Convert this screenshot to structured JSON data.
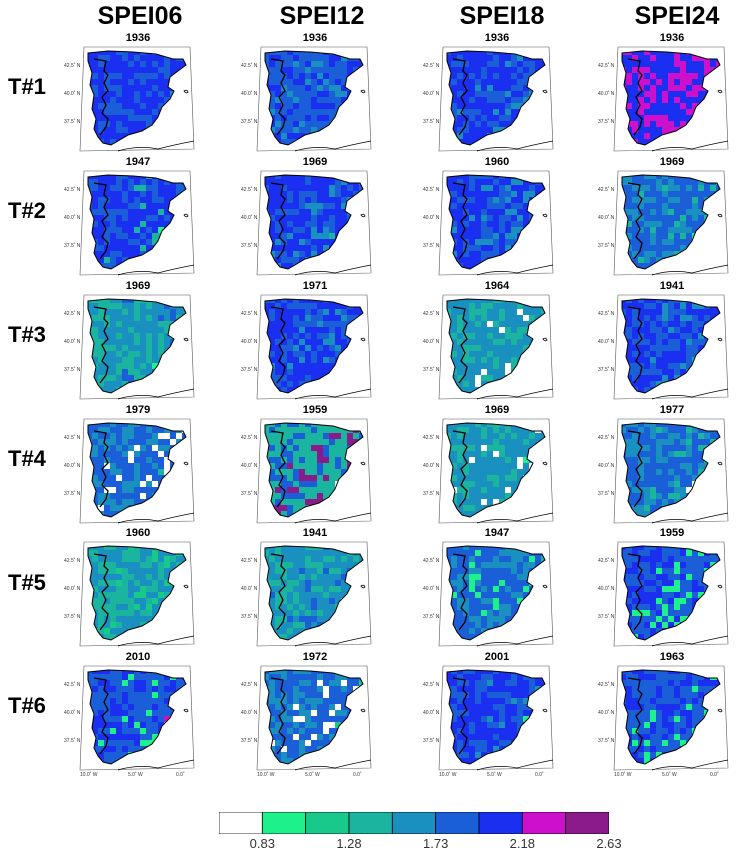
{
  "chart_data": {
    "type": "heatmap",
    "columns": [
      "SPEI06",
      "SPEI12",
      "SPEI18",
      "SPEI24"
    ],
    "rows": [
      "T#1",
      "T#2",
      "T#3",
      "T#4",
      "T#5",
      "T#6"
    ],
    "years": [
      [
        "1936",
        "1936",
        "1936",
        "1936"
      ],
      [
        "1947",
        "1969",
        "1960",
        "1969"
      ],
      [
        "1969",
        "1971",
        "1964",
        "1941"
      ],
      [
        "1979",
        "1959",
        "1969",
        "1977"
      ],
      [
        "1960",
        "1941",
        "1947",
        "1959"
      ],
      [
        "2010",
        "1972",
        "2001",
        "1963"
      ]
    ],
    "lat_ticks": [
      "42.5˚ N",
      "40.0˚ N",
      "37.5˚ N"
    ],
    "lon_ticks": [
      "10.0˚ W",
      "5.0˚ W",
      "0.0˚"
    ],
    "colorbar": {
      "labels": [
        "0.83",
        "1.28",
        "1.73",
        "2.18",
        "2.63"
      ],
      "colors": [
        "#ffffff",
        "#1ef08c",
        "#19c98c",
        "#1bb49e",
        "#1a90c0",
        "#1a5ed8",
        "#1a2ff0",
        "#cc10cc",
        "#8b1a8b"
      ]
    }
  },
  "palette": {
    "white": "#ffffff",
    "c1": "#1ef08c",
    "c2": "#19c98c",
    "c3": "#1bb49e",
    "c4": "#1a90c0",
    "c5": "#1a5ed8",
    "c6": "#1a2ff0",
    "c7": "#cc10cc",
    "c8": "#8b1a8b"
  }
}
